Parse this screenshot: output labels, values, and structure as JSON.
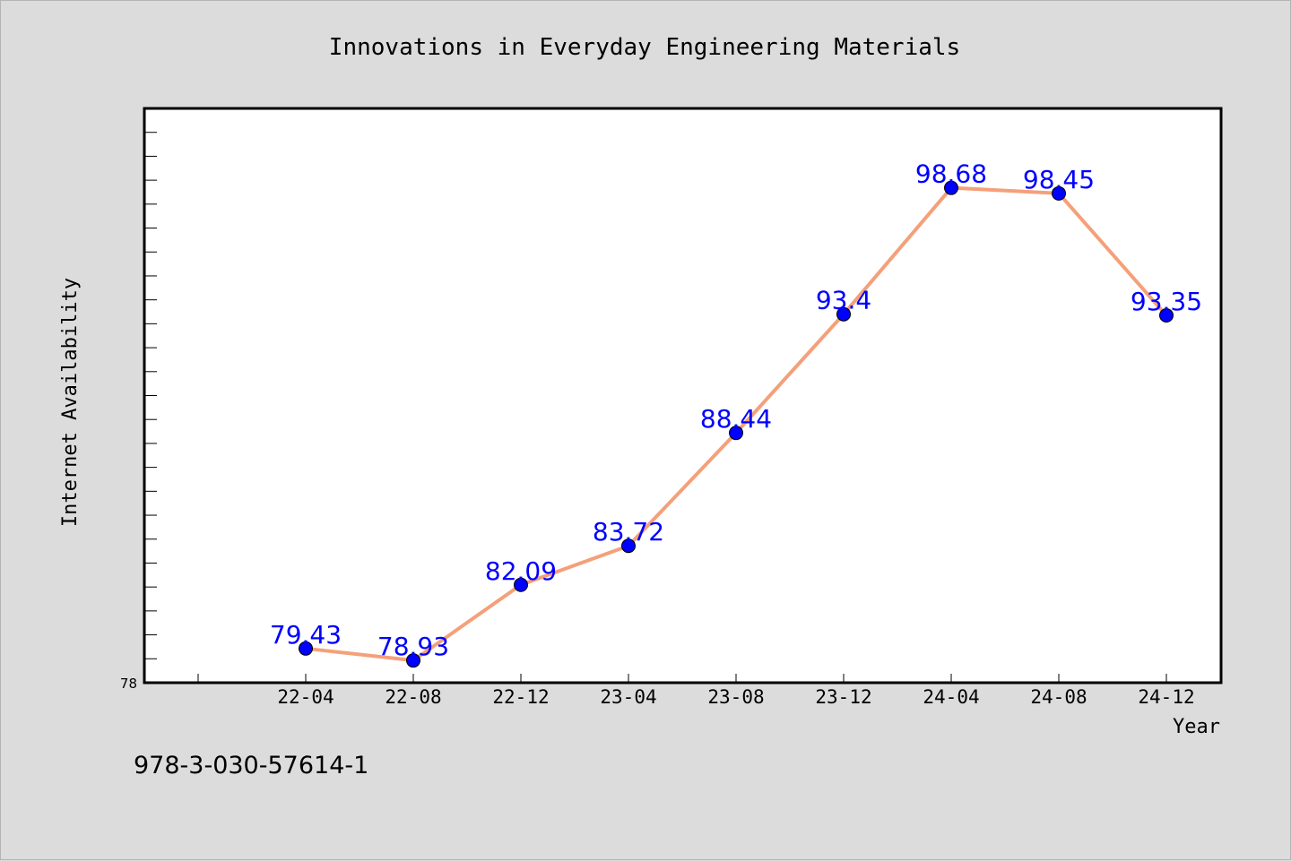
{
  "chart_data": {
    "type": "line",
    "title": "Innovations in Everyday Engineering Materials",
    "xlabel": "Year",
    "ylabel": "Internet Availability",
    "categories": [
      "22-04",
      "22-08",
      "22-12",
      "23-04",
      "23-08",
      "23-12",
      "24-04",
      "24-08",
      "24-12"
    ],
    "series": [
      {
        "values": [
          79.43,
          78.93,
          82.09,
          83.72,
          88.44,
          93.4,
          98.68,
          98.45,
          93.35
        ],
        "labels": [
          "79.43",
          "78.93",
          "82.09",
          "83.72",
          "88.44",
          "93.4",
          "98.68",
          "98.45",
          "93.35"
        ]
      }
    ],
    "ylim": [
      78,
      102
    ],
    "ytick_labels": [
      "78"
    ],
    "line_color": "#f4a07a",
    "marker_color": "#0000ff",
    "label_color": "#0000ff",
    "grid": false,
    "legend": "none"
  },
  "footer": {
    "isbn": "978-3-030-57614-1"
  },
  "colors": {
    "background": "#dcdcdc",
    "plot_background": "#ffffff",
    "axis": "#000000"
  }
}
